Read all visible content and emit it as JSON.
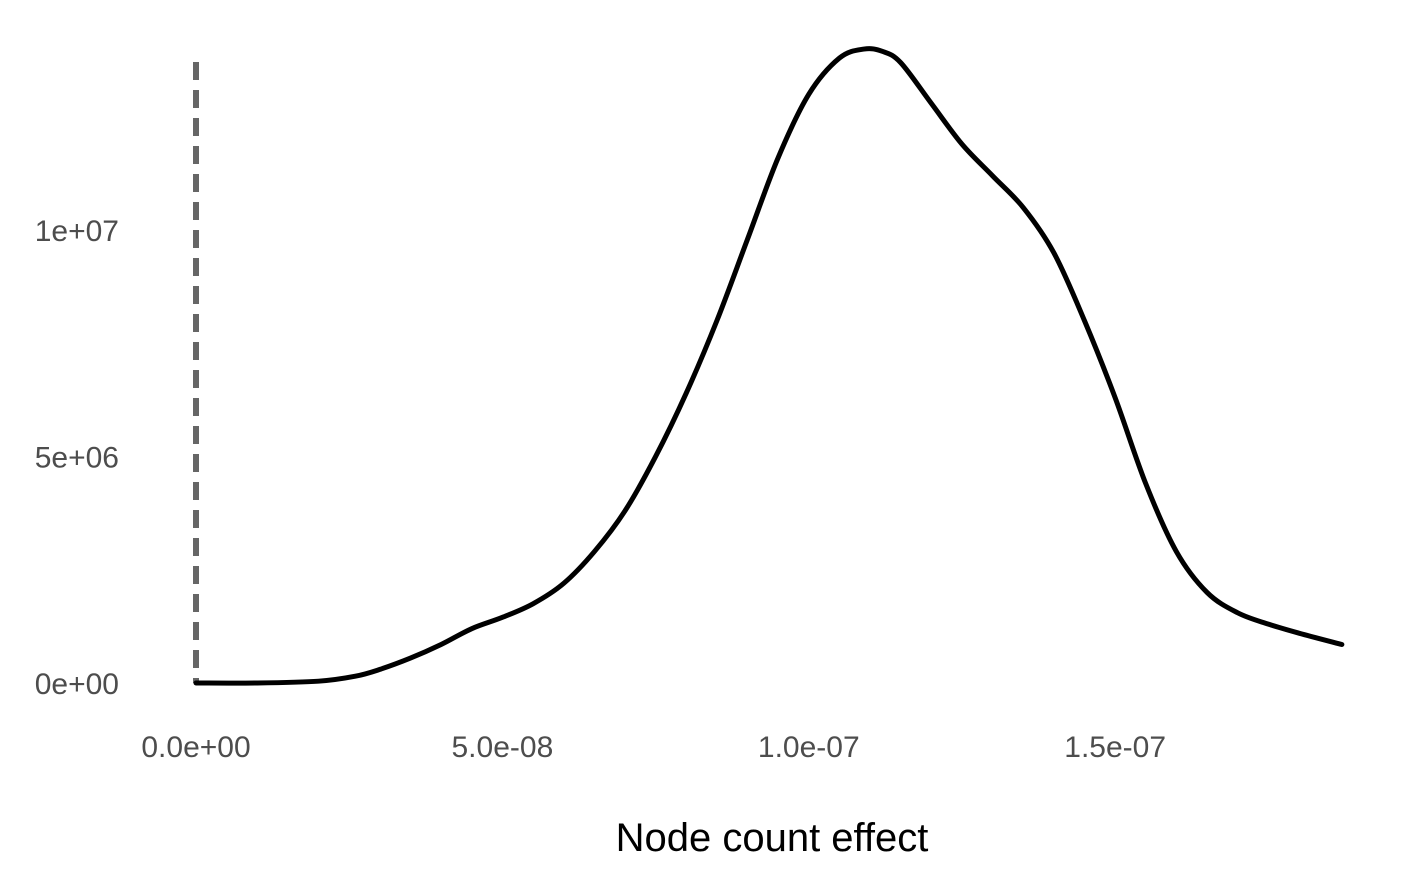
{
  "chart_data": {
    "type": "line",
    "title": "",
    "xlabel": "Node count effect",
    "ylabel": "",
    "xlim": [
      0,
      1.88e-07
    ],
    "ylim": [
      0,
      14200000.0
    ],
    "grid": false,
    "x_ticks": [
      {
        "value": 0,
        "label": "0.0e+00"
      },
      {
        "value": 5e-08,
        "label": "5.0e-08"
      },
      {
        "value": 1e-07,
        "label": "1.0e-07"
      },
      {
        "value": 1.5e-07,
        "label": "1.5e-07"
      }
    ],
    "y_ticks": [
      {
        "value": 0,
        "label": "0e+00"
      },
      {
        "value": 5000000,
        "label": "5e+06"
      },
      {
        "value": 10000000,
        "label": "1e+07"
      }
    ],
    "reference_line": {
      "x": 0,
      "style": "dashed",
      "color": "#666666"
    },
    "series": [
      {
        "color": "#000000",
        "x": [
          0,
          1e-08,
          2e-08,
          2.6e-08,
          3e-08,
          3.5e-08,
          4e-08,
          4.5e-08,
          5e-08,
          5.5e-08,
          6e-08,
          6.5e-08,
          7e-08,
          7.5e-08,
          8e-08,
          8.5e-08,
          9e-08,
          9.5e-08,
          1e-07,
          1.05e-07,
          1.09e-07,
          1.12e-07,
          1.15e-07,
          1.2e-07,
          1.25e-07,
          1.3e-07,
          1.35e-07,
          1.4e-07,
          1.45e-07,
          1.5e-07,
          1.55e-07,
          1.6e-07,
          1.65e-07,
          1.7e-07,
          1.75e-07,
          1.8e-07,
          1.87e-07
        ],
        "y": [
          0,
          0,
          40000,
          150000,
          300000,
          550000,
          850000,
          1200000,
          1450000,
          1750000,
          2200000,
          2900000,
          3800000,
          5000000,
          6400000,
          8000000,
          9800000,
          11600000,
          13000000,
          13800000,
          14000000,
          13950000,
          13700000,
          12800000,
          11900000,
          11200000,
          10500000,
          9500000,
          8000000,
          6300000,
          4400000,
          2900000,
          2000000,
          1550000,
          1300000,
          1100000,
          850000
        ]
      }
    ]
  }
}
